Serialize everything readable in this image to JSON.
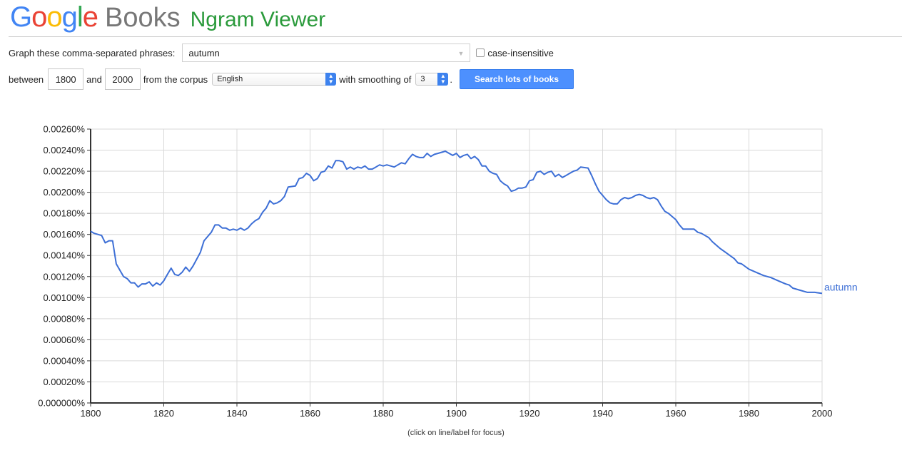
{
  "header": {
    "logo_text": "Google",
    "books_text": "Books",
    "product_title": "Ngram Viewer"
  },
  "query": {
    "label": "Graph these comma-separated phrases:",
    "value": "autumn",
    "case_insensitive_label": "case-insensitive",
    "case_insensitive_checked": false
  },
  "range": {
    "between_label": "between",
    "start_year": "1800",
    "and_label": "and",
    "end_year": "2000",
    "corpus_label": "from the corpus",
    "corpus_value": "English",
    "smoothing_label": "with smoothing of",
    "smoothing_value": "3",
    "period": ".",
    "search_button": "Search lots of books"
  },
  "colors": {
    "line": "#3d6fd6",
    "button": "#4d90fe",
    "title_green": "#2a9a3b"
  },
  "footer_note": "(click on line/label for focus)",
  "chart_data": {
    "type": "line",
    "xlim": [
      1800,
      2000
    ],
    "ylim": [
      0,
      0.0026
    ],
    "x_ticks": [
      "1800",
      "1820",
      "1840",
      "1860",
      "1880",
      "1900",
      "1920",
      "1940",
      "1960",
      "1980",
      "2000"
    ],
    "y_ticks": [
      "0.000000%",
      "0.00020%",
      "0.00040%",
      "0.00060%",
      "0.00080%",
      "0.00100%",
      "0.00120%",
      "0.00140%",
      "0.00160%",
      "0.00180%",
      "0.00200%",
      "0.00220%",
      "0.00240%",
      "0.00260%"
    ],
    "grid": true,
    "series": [
      {
        "name": "autumn",
        "color": "#3d6fd6",
        "points": [
          [
            1800,
            0.00163
          ],
          [
            1801,
            0.00161
          ],
          [
            1803,
            0.00159
          ],
          [
            1804,
            0.00152
          ],
          [
            1805,
            0.00154
          ],
          [
            1806,
            0.00154
          ],
          [
            1807,
            0.00132
          ],
          [
            1809,
            0.0012
          ],
          [
            1810,
            0.00118
          ],
          [
            1811,
            0.00114
          ],
          [
            1812,
            0.00114
          ],
          [
            1813,
            0.0011
          ],
          [
            1814,
            0.00113
          ],
          [
            1815,
            0.00113
          ],
          [
            1816,
            0.00115
          ],
          [
            1817,
            0.00111
          ],
          [
            1818,
            0.00114
          ],
          [
            1819,
            0.00112
          ],
          [
            1820,
            0.00116
          ],
          [
            1821,
            0.00122
          ],
          [
            1822,
            0.00128
          ],
          [
            1823,
            0.00122
          ],
          [
            1824,
            0.00121
          ],
          [
            1825,
            0.00124
          ],
          [
            1826,
            0.00129
          ],
          [
            1827,
            0.00125
          ],
          [
            1828,
            0.0013
          ],
          [
            1830,
            0.00143
          ],
          [
            1831,
            0.00154
          ],
          [
            1832,
            0.00158
          ],
          [
            1833,
            0.00162
          ],
          [
            1834,
            0.00169
          ],
          [
            1835,
            0.00169
          ],
          [
            1836,
            0.00166
          ],
          [
            1837,
            0.00166
          ],
          [
            1838,
            0.00164
          ],
          [
            1839,
            0.00165
          ],
          [
            1840,
            0.00164
          ],
          [
            1841,
            0.00166
          ],
          [
            1842,
            0.00164
          ],
          [
            1843,
            0.00166
          ],
          [
            1844,
            0.0017
          ],
          [
            1845,
            0.00173
          ],
          [
            1846,
            0.00175
          ],
          [
            1847,
            0.00181
          ],
          [
            1848,
            0.00185
          ],
          [
            1849,
            0.00192
          ],
          [
            1850,
            0.00189
          ],
          [
            1851,
            0.0019
          ],
          [
            1852,
            0.00192
          ],
          [
            1853,
            0.00196
          ],
          [
            1854,
            0.00205
          ],
          [
            1856,
            0.00206
          ],
          [
            1857,
            0.00213
          ],
          [
            1858,
            0.00214
          ],
          [
            1859,
            0.00218
          ],
          [
            1860,
            0.00216
          ],
          [
            1861,
            0.00211
          ],
          [
            1862,
            0.00213
          ],
          [
            1863,
            0.00219
          ],
          [
            1864,
            0.0022
          ],
          [
            1865,
            0.00225
          ],
          [
            1866,
            0.00223
          ],
          [
            1867,
            0.0023
          ],
          [
            1868,
            0.0023
          ],
          [
            1869,
            0.00229
          ],
          [
            1870,
            0.00222
          ],
          [
            1871,
            0.00224
          ],
          [
            1872,
            0.00222
          ],
          [
            1873,
            0.00224
          ],
          [
            1874,
            0.00223
          ],
          [
            1875,
            0.00225
          ],
          [
            1876,
            0.00222
          ],
          [
            1877,
            0.00222
          ],
          [
            1878,
            0.00224
          ],
          [
            1879,
            0.00226
          ],
          [
            1880,
            0.00225
          ],
          [
            1881,
            0.00226
          ],
          [
            1882,
            0.00225
          ],
          [
            1883,
            0.00224
          ],
          [
            1884,
            0.00226
          ],
          [
            1885,
            0.00228
          ],
          [
            1886,
            0.00227
          ],
          [
            1887,
            0.00232
          ],
          [
            1888,
            0.00236
          ],
          [
            1889,
            0.00234
          ],
          [
            1890,
            0.00233
          ],
          [
            1891,
            0.00233
          ],
          [
            1892,
            0.00237
          ],
          [
            1893,
            0.00234
          ],
          [
            1894,
            0.00236
          ],
          [
            1895,
            0.00237
          ],
          [
            1896,
            0.00238
          ],
          [
            1897,
            0.00239
          ],
          [
            1898,
            0.00237
          ],
          [
            1899,
            0.00235
          ],
          [
            1900,
            0.00237
          ],
          [
            1901,
            0.00233
          ],
          [
            1902,
            0.00235
          ],
          [
            1903,
            0.00236
          ],
          [
            1904,
            0.00232
          ],
          [
            1905,
            0.00234
          ],
          [
            1906,
            0.00231
          ],
          [
            1907,
            0.00225
          ],
          [
            1908,
            0.00225
          ],
          [
            1909,
            0.0022
          ],
          [
            1910,
            0.00218
          ],
          [
            1911,
            0.00217
          ],
          [
            1912,
            0.00211
          ],
          [
            1913,
            0.00208
          ],
          [
            1914,
            0.00206
          ],
          [
            1915,
            0.00201
          ],
          [
            1916,
            0.00202
          ],
          [
            1917,
            0.00204
          ],
          [
            1918,
            0.00204
          ],
          [
            1919,
            0.00205
          ],
          [
            1920,
            0.00211
          ],
          [
            1921,
            0.00212
          ],
          [
            1922,
            0.00219
          ],
          [
            1923,
            0.0022
          ],
          [
            1924,
            0.00217
          ],
          [
            1925,
            0.00219
          ],
          [
            1926,
            0.0022
          ],
          [
            1927,
            0.00215
          ],
          [
            1928,
            0.00217
          ],
          [
            1929,
            0.00214
          ],
          [
            1930,
            0.00216
          ],
          [
            1931,
            0.00218
          ],
          [
            1932,
            0.0022
          ],
          [
            1933,
            0.00221
          ],
          [
            1934,
            0.00224
          ],
          [
            1936,
            0.00223
          ],
          [
            1937,
            0.00216
          ],
          [
            1938,
            0.00208
          ],
          [
            1939,
            0.00201
          ],
          [
            1940,
            0.00197
          ],
          [
            1941,
            0.00193
          ],
          [
            1942,
            0.0019
          ],
          [
            1943,
            0.00189
          ],
          [
            1944,
            0.00189
          ],
          [
            1945,
            0.00193
          ],
          [
            1946,
            0.00195
          ],
          [
            1947,
            0.00194
          ],
          [
            1948,
            0.00195
          ],
          [
            1949,
            0.00197
          ],
          [
            1950,
            0.00198
          ],
          [
            1951,
            0.00197
          ],
          [
            1952,
            0.00195
          ],
          [
            1953,
            0.00194
          ],
          [
            1954,
            0.00195
          ],
          [
            1955,
            0.00193
          ],
          [
            1956,
            0.00187
          ],
          [
            1957,
            0.00182
          ],
          [
            1958,
            0.0018
          ],
          [
            1959,
            0.00177
          ],
          [
            1960,
            0.00174
          ],
          [
            1961,
            0.00169
          ],
          [
            1962,
            0.00165
          ],
          [
            1963,
            0.00165
          ],
          [
            1964,
            0.00165
          ],
          [
            1965,
            0.00165
          ],
          [
            1966,
            0.00162
          ],
          [
            1967,
            0.00161
          ],
          [
            1968,
            0.00159
          ],
          [
            1969,
            0.00157
          ],
          [
            1970,
            0.00153
          ],
          [
            1972,
            0.00147
          ],
          [
            1974,
            0.00142
          ],
          [
            1976,
            0.00137
          ],
          [
            1977,
            0.00133
          ],
          [
            1978,
            0.00132
          ],
          [
            1980,
            0.00127
          ],
          [
            1982,
            0.00124
          ],
          [
            1984,
            0.00121
          ],
          [
            1986,
            0.00119
          ],
          [
            1988,
            0.00116
          ],
          [
            1990,
            0.00113
          ],
          [
            1991,
            0.00112
          ],
          [
            1992,
            0.00109
          ],
          [
            1994,
            0.00107
          ],
          [
            1996,
            0.00105
          ],
          [
            1998,
            0.00105
          ],
          [
            2000,
            0.00104
          ]
        ]
      }
    ]
  }
}
